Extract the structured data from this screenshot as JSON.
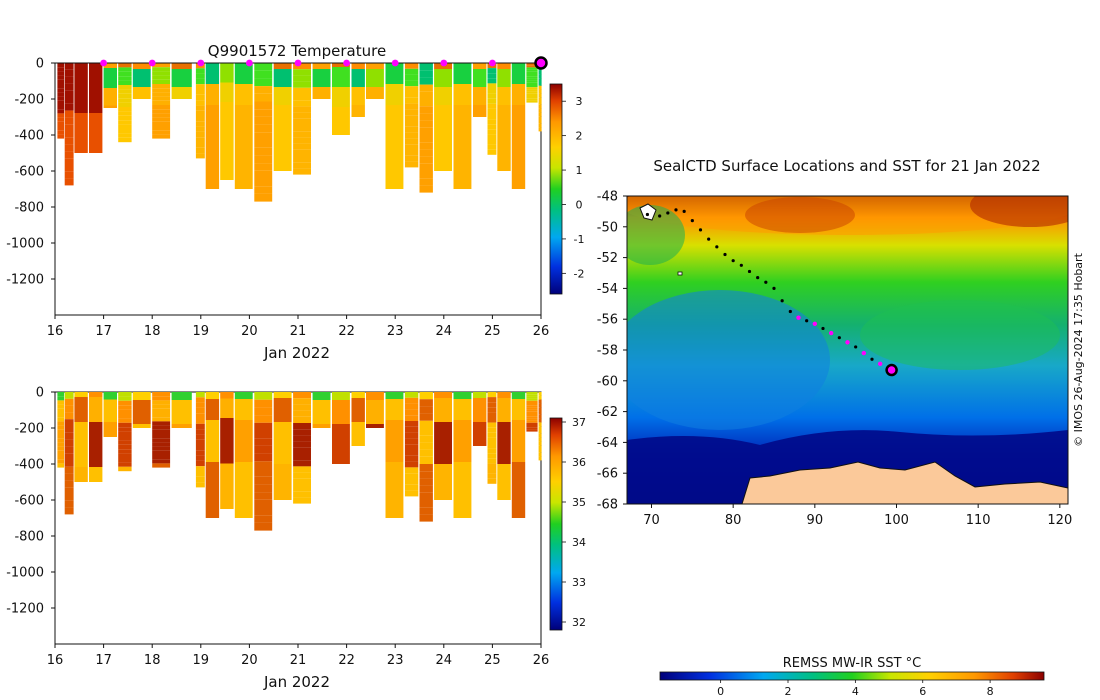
{
  "chart_data": [
    {
      "type": "heatmap",
      "title": "Q9901572  Temperature",
      "xlabel": "Jan 2022",
      "ylabel": "",
      "x_ticks": [
        "16",
        "17",
        "18",
        "19",
        "20",
        "21",
        "22",
        "23",
        "24",
        "25",
        "26"
      ],
      "x_range": [
        16,
        26
      ],
      "y_ticks": [
        "0",
        "-200",
        "-400",
        "-600",
        "-800",
        "-1000",
        "-1200"
      ],
      "y_range": [
        -1400,
        0
      ],
      "colorbar": {
        "ticks": [
          "3",
          "2",
          "1",
          "0",
          "-1",
          "-2"
        ],
        "range": [
          -2.6,
          3.5
        ]
      },
      "marker_days": [
        17,
        18,
        19,
        20,
        21,
        22,
        23,
        24,
        25
      ],
      "current_day": 26,
      "profiles": [
        {
          "t": 16.05,
          "max_depth": 420
        },
        {
          "t": 16.2,
          "max_depth": 680
        },
        {
          "t": 16.4,
          "max_depth": 500
        },
        {
          "t": 16.7,
          "max_depth": 500
        },
        {
          "t": 17.0,
          "max_depth": 250
        },
        {
          "t": 17.3,
          "max_depth": 440
        },
        {
          "t": 17.6,
          "max_depth": 200
        },
        {
          "t": 18.0,
          "max_depth": 420
        },
        {
          "t": 18.4,
          "max_depth": 200
        },
        {
          "t": 18.9,
          "max_depth": 530
        },
        {
          "t": 19.1,
          "max_depth": 700
        },
        {
          "t": 19.4,
          "max_depth": 650
        },
        {
          "t": 19.7,
          "max_depth": 700
        },
        {
          "t": 20.1,
          "max_depth": 770
        },
        {
          "t": 20.5,
          "max_depth": 600
        },
        {
          "t": 20.9,
          "max_depth": 620
        },
        {
          "t": 21.3,
          "max_depth": 200
        },
        {
          "t": 21.7,
          "max_depth": 400
        },
        {
          "t": 22.1,
          "max_depth": 300
        },
        {
          "t": 22.4,
          "max_depth": 200
        },
        {
          "t": 22.8,
          "max_depth": 700
        },
        {
          "t": 23.2,
          "max_depth": 580
        },
        {
          "t": 23.5,
          "max_depth": 720
        },
        {
          "t": 23.8,
          "max_depth": 600
        },
        {
          "t": 24.2,
          "max_depth": 700
        },
        {
          "t": 24.6,
          "max_depth": 300
        },
        {
          "t": 24.9,
          "max_depth": 510
        },
        {
          "t": 25.1,
          "max_depth": 600
        },
        {
          "t": 25.4,
          "max_depth": 700
        },
        {
          "t": 25.7,
          "max_depth": 220
        },
        {
          "t": 25.95,
          "max_depth": 380
        }
      ]
    },
    {
      "type": "heatmap",
      "title": "",
      "xlabel": "Jan 2022",
      "ylabel": "",
      "x_ticks": [
        "16",
        "17",
        "18",
        "19",
        "20",
        "21",
        "22",
        "23",
        "24",
        "25",
        "26"
      ],
      "x_range": [
        16,
        26
      ],
      "y_ticks": [
        "0",
        "-200",
        "-400",
        "-600",
        "-800",
        "-1000",
        "-1200"
      ],
      "y_range": [
        -1400,
        0
      ],
      "colorbar": {
        "ticks": [
          "37",
          "36",
          "35",
          "34",
          "33",
          "32"
        ],
        "range": [
          31.8,
          37.1
        ]
      },
      "profiles": [
        {
          "t": 16.05,
          "max_depth": 420
        },
        {
          "t": 16.2,
          "max_depth": 680
        },
        {
          "t": 16.4,
          "max_depth": 500
        },
        {
          "t": 16.7,
          "max_depth": 500
        },
        {
          "t": 17.0,
          "max_depth": 250
        },
        {
          "t": 17.3,
          "max_depth": 440
        },
        {
          "t": 17.6,
          "max_depth": 200
        },
        {
          "t": 18.0,
          "max_depth": 420
        },
        {
          "t": 18.4,
          "max_depth": 200
        },
        {
          "t": 18.9,
          "max_depth": 530
        },
        {
          "t": 19.1,
          "max_depth": 700
        },
        {
          "t": 19.4,
          "max_depth": 650
        },
        {
          "t": 19.7,
          "max_depth": 700
        },
        {
          "t": 20.1,
          "max_depth": 770
        },
        {
          "t": 20.5,
          "max_depth": 600
        },
        {
          "t": 20.9,
          "max_depth": 620
        },
        {
          "t": 21.3,
          "max_depth": 200
        },
        {
          "t": 21.7,
          "max_depth": 400
        },
        {
          "t": 22.1,
          "max_depth": 300
        },
        {
          "t": 22.4,
          "max_depth": 200
        },
        {
          "t": 22.8,
          "max_depth": 700
        },
        {
          "t": 23.2,
          "max_depth": 580
        },
        {
          "t": 23.5,
          "max_depth": 720
        },
        {
          "t": 23.8,
          "max_depth": 600
        },
        {
          "t": 24.2,
          "max_depth": 700
        },
        {
          "t": 24.6,
          "max_depth": 300
        },
        {
          "t": 24.9,
          "max_depth": 510
        },
        {
          "t": 25.1,
          "max_depth": 600
        },
        {
          "t": 25.4,
          "max_depth": 700
        },
        {
          "t": 25.7,
          "max_depth": 220
        },
        {
          "t": 25.95,
          "max_depth": 380
        }
      ]
    },
    {
      "type": "heatmap",
      "title": "SealCTD Surface Locations and SST for 21 Jan 2022",
      "x_ticks": [
        "70",
        "80",
        "90",
        "100",
        "110",
        "120"
      ],
      "x_range": [
        67,
        121
      ],
      "y_ticks": [
        "-48",
        "-50",
        "-52",
        "-54",
        "-56",
        "-58",
        "-60",
        "-62",
        "-64",
        "-66",
        "-68"
      ],
      "y_range": [
        -68,
        -48
      ],
      "colorbar_label": "REMSS MW-IR SST °C",
      "colorbar": {
        "ticks": [
          "0",
          "2",
          "4",
          "6",
          "8"
        ],
        "range": [
          -1.8,
          9.6
        ]
      },
      "credit": "© IMOS 26-Aug-2024 17:35 Hobart",
      "track": [
        [
          69.5,
          -49.2
        ],
        [
          71,
          -49.3
        ],
        [
          72,
          -49.1
        ],
        [
          73,
          -48.9
        ],
        [
          74,
          -49.0
        ],
        [
          75,
          -49.6
        ],
        [
          76,
          -50.2
        ],
        [
          77,
          -50.8
        ],
        [
          78,
          -51.3
        ],
        [
          79,
          -51.8
        ],
        [
          80,
          -52.2
        ],
        [
          81,
          -52.5
        ],
        [
          82,
          -52.9
        ],
        [
          83,
          -53.3
        ],
        [
          84,
          -53.6
        ],
        [
          85,
          -54.0
        ],
        [
          86,
          -54.8
        ],
        [
          87,
          -55.5
        ],
        [
          88,
          -55.9
        ],
        [
          89,
          -56.1
        ],
        [
          90,
          -56.3
        ],
        [
          91,
          -56.6
        ],
        [
          92,
          -56.9
        ],
        [
          93,
          -57.2
        ],
        [
          94,
          -57.5
        ],
        [
          95,
          -57.8
        ],
        [
          96,
          -58.2
        ],
        [
          97,
          -58.6
        ],
        [
          98,
          -58.9
        ],
        [
          99.4,
          -59.3
        ]
      ],
      "current_position": [
        99.4,
        -59.3
      ]
    }
  ]
}
